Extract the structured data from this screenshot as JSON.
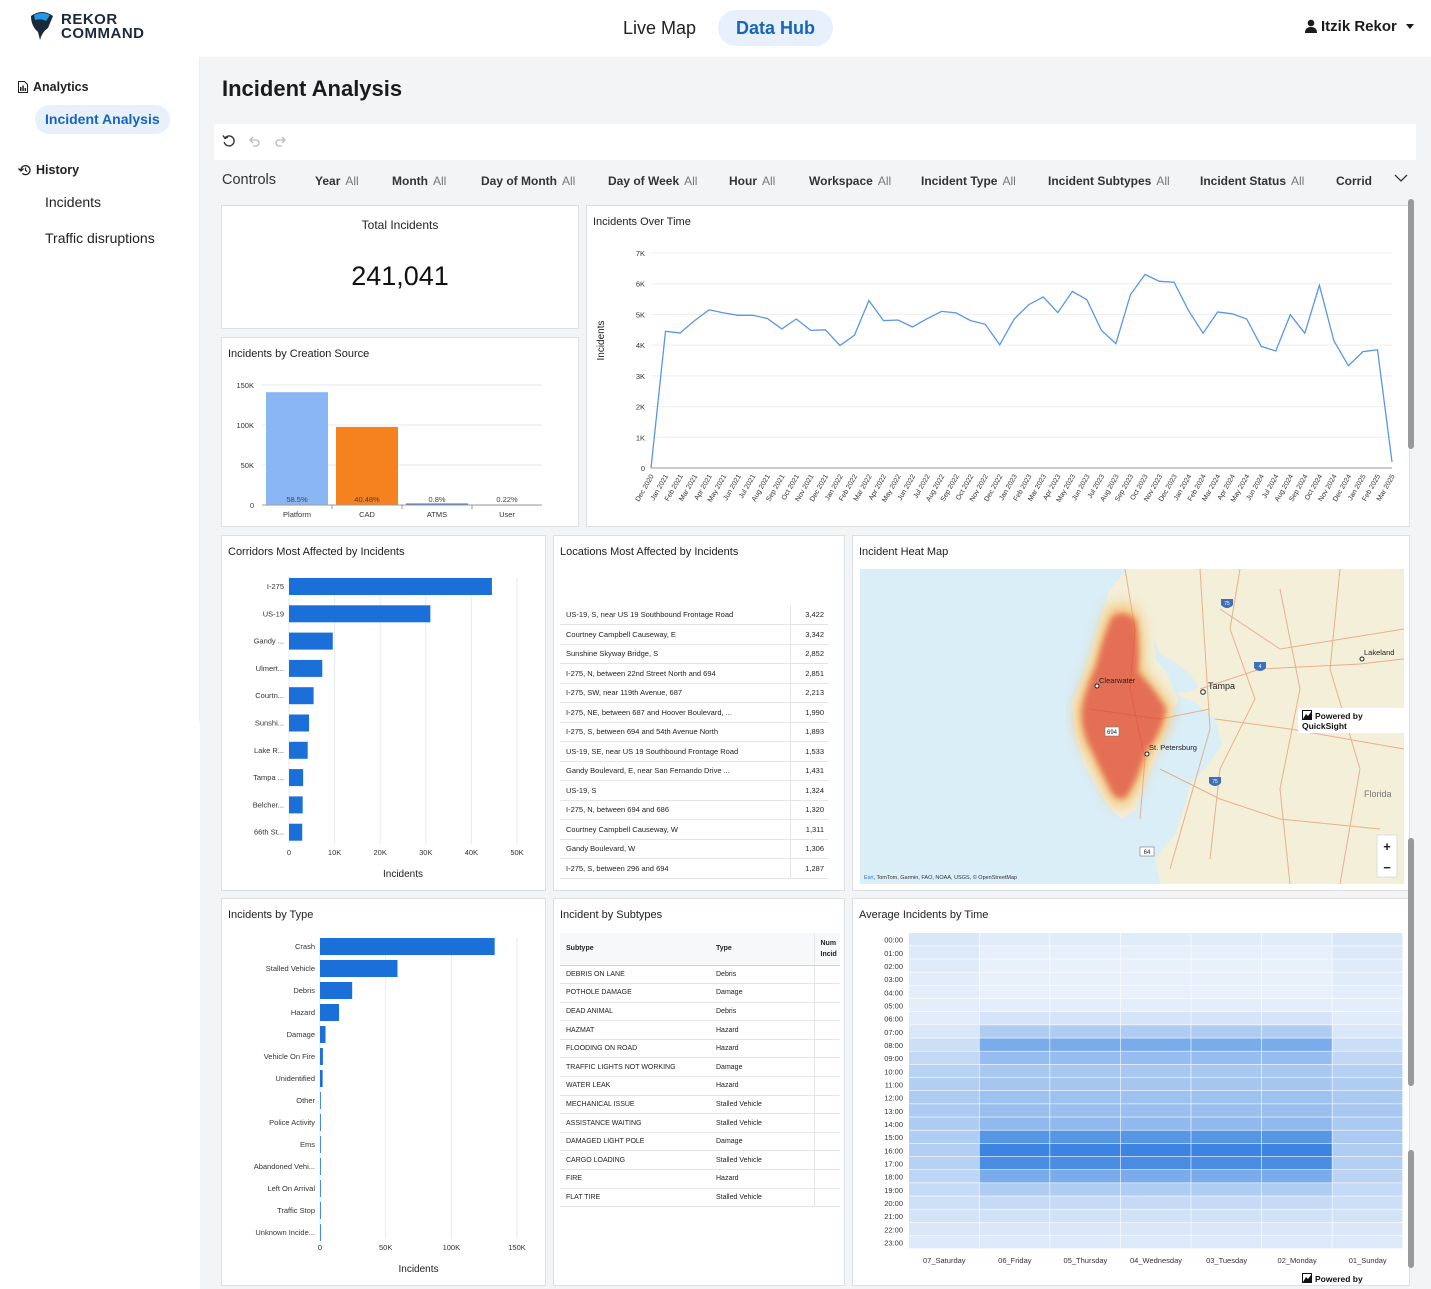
{
  "app": {
    "logo_line1": "REKOR",
    "logo_line2": "COMMAND",
    "accent": "#1565c0"
  },
  "nav": {
    "live_map": "Live Map",
    "data_hub": "Data Hub"
  },
  "user": {
    "name": "Itzik Rekor"
  },
  "sidebar": {
    "analytics": "Analytics",
    "incident_analysis": "Incident Analysis",
    "history": "History",
    "incidents": "Incidents",
    "traffic_disruptions": "Traffic disruptions"
  },
  "page": {
    "title": "Incident Analysis"
  },
  "controls": {
    "label": "Controls",
    "filters": [
      {
        "name": "Year",
        "value": "All"
      },
      {
        "name": "Month",
        "value": "All"
      },
      {
        "name": "Day of Month",
        "value": "All"
      },
      {
        "name": "Day of Week",
        "value": "All"
      },
      {
        "name": "Hour",
        "value": "All"
      },
      {
        "name": "Workspace",
        "value": "All"
      },
      {
        "name": "Incident Type",
        "value": "All"
      },
      {
        "name": "Incident Subtypes",
        "value": "All"
      },
      {
        "name": "Incident Status",
        "value": "All"
      },
      {
        "name": "Corrid",
        "value": ""
      }
    ]
  },
  "kpi": {
    "title": "Total Incidents",
    "value": "241,041"
  },
  "heatmap_map": {
    "title": "Incident Heat Map",
    "labels": [
      "Clearwater",
      "Tampa",
      "St. Petersburg",
      "Lakeland",
      "Florida"
    ],
    "shields": [
      "75",
      "4",
      "694",
      "75",
      "64"
    ],
    "attribution_link": "Esri",
    "attribution": ", TomTom, Garmin, FAO, NOAA, USGS, © OpenStreetMap",
    "zoom_in": "+",
    "zoom_out": "−"
  },
  "powered_by": "Powered by QuickSight",
  "chart_data": [
    {
      "id": "source",
      "type": "bar",
      "title": "Incidents by Creation Source",
      "categories": [
        "Platform",
        "CAD",
        "ATMS",
        "User"
      ],
      "values": [
        141000,
        97600,
        1930,
        530
      ],
      "data_labels": [
        "58.5%",
        "40.48%",
        "0.8%",
        "0.22%"
      ],
      "colors": [
        "#8ab6f5",
        "#f5821f",
        "#4a78c8",
        "#4a9e5a"
      ],
      "ylim": [
        0,
        150000
      ],
      "yticks": [
        0,
        50000,
        100000,
        150000
      ],
      "ytick_labels": [
        "0",
        "50K",
        "100K",
        "150K"
      ]
    },
    {
      "id": "overtime",
      "type": "line",
      "title": "Incidents Over Time",
      "ylabel": "Incidents",
      "x": [
        "Dec 2020",
        "Jan 2021",
        "Feb 2021",
        "Mar 2021",
        "Apr 2021",
        "May 2021",
        "Jun 2021",
        "Jul 2021",
        "Aug 2021",
        "Sep 2021",
        "Oct 2021",
        "Nov 2021",
        "Dec 2021",
        "Jan 2022",
        "Feb 2022",
        "Mar 2022",
        "Apr 2022",
        "May 2022",
        "Jun 2022",
        "Jul 2022",
        "Aug 2022",
        "Sep 2022",
        "Oct 2022",
        "Nov 2022",
        "Dec 2022",
        "Jan 2023",
        "Feb 2023",
        "Mar 2023",
        "Apr 2023",
        "May 2023",
        "Jun 2023",
        "Jul 2023",
        "Aug 2023",
        "Sep 2023",
        "Oct 2023",
        "Nov 2023",
        "Dec 2023",
        "Jan 2024",
        "Feb 2024",
        "Mar 2024",
        "Apr 2024",
        "May 2024",
        "Jun 2024",
        "Jul 2024",
        "Aug 2024",
        "Sep 2024",
        "Oct 2024",
        "Nov 2024",
        "Dec 2024",
        "Jan 2025",
        "Feb 2025",
        "Mar 2025"
      ],
      "values": [
        0,
        4450,
        4400,
        4800,
        5150,
        5050,
        4970,
        4970,
        4870,
        4530,
        4850,
        4480,
        4500,
        3990,
        4320,
        5450,
        4800,
        4820,
        4590,
        4860,
        5100,
        5050,
        4800,
        4680,
        4010,
        4850,
        5320,
        5570,
        5060,
        5750,
        5480,
        4480,
        4050,
        5650,
        6300,
        6080,
        6050,
        5120,
        4390,
        5080,
        5020,
        4850,
        3960,
        3810,
        4990,
        4390,
        5950,
        4140,
        3330,
        3790,
        3850,
        200
      ],
      "ylim": [
        0,
        7000
      ],
      "yticks": [
        0,
        1000,
        2000,
        3000,
        4000,
        5000,
        6000,
        7000
      ],
      "ytick_labels": [
        "0",
        "1K",
        "2K",
        "3K",
        "4K",
        "5K",
        "6K",
        "7K"
      ]
    },
    {
      "id": "corridors",
      "type": "bar",
      "orientation": "horizontal",
      "title": "Corridors Most Affected by Incidents",
      "xlabel": "Incidents",
      "categories": [
        "I-275",
        "US-19",
        "Gandy ...",
        "Ulmert...",
        "Courtn...",
        "Sunshi...",
        "Lake R...",
        "Tampa ...",
        "Belcher...",
        "66th St..."
      ],
      "values": [
        44500,
        31000,
        9600,
        7300,
        5400,
        4400,
        4100,
        3100,
        3000,
        2900
      ],
      "xlim": [
        0,
        50000
      ],
      "xticks": [
        0,
        10000,
        20000,
        30000,
        40000,
        50000
      ],
      "xtick_labels": [
        "0",
        "10K",
        "20K",
        "30K",
        "40K",
        "50K"
      ]
    },
    {
      "id": "locations",
      "type": "table",
      "title": "Locations Most Affected by Incidents",
      "rows": [
        [
          "US-19, S, near US 19 Southbound Frontage Road",
          "3,422"
        ],
        [
          "Courtney Campbell Causeway, E",
          "3,342"
        ],
        [
          "Sunshine Skyway Bridge, S",
          "2,852"
        ],
        [
          "I-275, N, between 22nd Street North and 694",
          "2,851"
        ],
        [
          "I-275, SW, near 119th Avenue, 687",
          "2,213"
        ],
        [
          "I-275, NE, between 687 and Hoover Boulevard, ...",
          "1,990"
        ],
        [
          "I-275, S, between 694 and 54th Avenue North",
          "1,893"
        ],
        [
          "US-19, SE, near US 19 Southbound Frontage Road",
          "1,533"
        ],
        [
          "Gandy Boulevard, E, near San Fernando Drive ...",
          "1,431"
        ],
        [
          "US-19, S",
          "1,324"
        ],
        [
          "I-275, N, between 694 and 686",
          "1,320"
        ],
        [
          "Courtney Campbell Causeway, W",
          "1,311"
        ],
        [
          "Gandy Boulevard, W",
          "1,306"
        ],
        [
          "I-275, S, between 296 and 694",
          "1,287"
        ]
      ]
    },
    {
      "id": "types",
      "type": "bar",
      "orientation": "horizontal",
      "title": "Incidents by Type",
      "xlabel": "Incidents",
      "categories": [
        "Crash",
        "Stalled Vehicle",
        "Debris",
        "Hazard",
        "Damage",
        "Vehicle On Fire",
        "Unidentified",
        "Other",
        "Police Activity",
        "Ems",
        "Abandoned Vehi...",
        "Left On Arrival",
        "Traffic Stop",
        "Unknown Incide..."
      ],
      "values": [
        133000,
        59000,
        24500,
        14500,
        4200,
        2200,
        2000,
        400,
        300,
        200,
        150,
        120,
        100,
        80
      ],
      "xlim": [
        0,
        150000
      ],
      "xticks": [
        0,
        50000,
        100000,
        150000
      ],
      "xtick_labels": [
        "0",
        "50K",
        "100K",
        "150K"
      ]
    },
    {
      "id": "subtypes",
      "type": "table",
      "title": "Incident by Subtypes",
      "columns": [
        "Subtype",
        "Type",
        "Num Incid"
      ],
      "rows": [
        [
          "DEBRIS ON LANE",
          "Debris"
        ],
        [
          "POTHOLE DAMAGE",
          "Damage"
        ],
        [
          "DEAD ANIMAL",
          "Debris"
        ],
        [
          "HAZMAT",
          "Hazard"
        ],
        [
          "FLOODING ON ROAD",
          "Hazard"
        ],
        [
          "TRAFFIC LIGHTS NOT WORKING",
          "Damage"
        ],
        [
          "WATER LEAK",
          "Hazard"
        ],
        [
          "MECHANICAL ISSUE",
          "Stalled Vehicle"
        ],
        [
          "ASSISTANCE WAITING",
          "Stalled Vehicle"
        ],
        [
          "DAMAGED LIGHT POLE",
          "Damage"
        ],
        [
          "CARGO LOADING",
          "Stalled Vehicle"
        ],
        [
          "FIRE",
          "Hazard"
        ],
        [
          "FLAT TIRE",
          "Stalled Vehicle"
        ]
      ]
    },
    {
      "id": "avgtime",
      "type": "heatmap",
      "title": "Average Incidents by Time",
      "columns": [
        "07_Saturday",
        "06_Friday",
        "05_Thursday",
        "04_Wednesday",
        "03_Tuesday",
        "02_Monday",
        "01_Sunday"
      ],
      "rows": [
        "00:00",
        "01:00",
        "02:00",
        "03:00",
        "04:00",
        "05:00",
        "06:00",
        "07:00",
        "08:00",
        "09:00",
        "10:00",
        "11:00",
        "12:00",
        "13:00",
        "14:00",
        "15:00",
        "16:00",
        "17:00",
        "18:00",
        "19:00",
        "20:00",
        "21:00",
        "22:00",
        "23:00"
      ],
      "weekday_profile": [
        0.06,
        0.04,
        0.03,
        0.03,
        0.03,
        0.05,
        0.12,
        0.3,
        0.55,
        0.42,
        0.33,
        0.35,
        0.38,
        0.4,
        0.45,
        0.72,
        0.85,
        0.78,
        0.55,
        0.3,
        0.2,
        0.14,
        0.1,
        0.08
      ],
      "weekend_profile": [
        0.1,
        0.08,
        0.07,
        0.06,
        0.05,
        0.05,
        0.06,
        0.1,
        0.17,
        0.22,
        0.27,
        0.3,
        0.32,
        0.33,
        0.32,
        0.31,
        0.3,
        0.28,
        0.24,
        0.2,
        0.16,
        0.13,
        0.1,
        0.08
      ]
    }
  ]
}
